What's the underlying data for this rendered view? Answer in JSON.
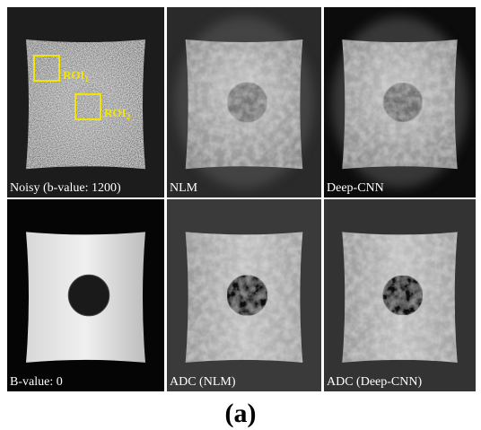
{
  "panels": [
    {
      "label": "Noisy (b-value: 1200)"
    },
    {
      "label": "NLM"
    },
    {
      "label": "Deep-CNN"
    },
    {
      "label": "B-value: 0"
    },
    {
      "label": "ADC (NLM)"
    },
    {
      "label": "ADC (Deep-CNN)"
    }
  ],
  "rois": [
    {
      "text": "ROI",
      "subscript": "1"
    },
    {
      "text": "ROI",
      "subscript": "2"
    }
  ],
  "caption": "(a)"
}
